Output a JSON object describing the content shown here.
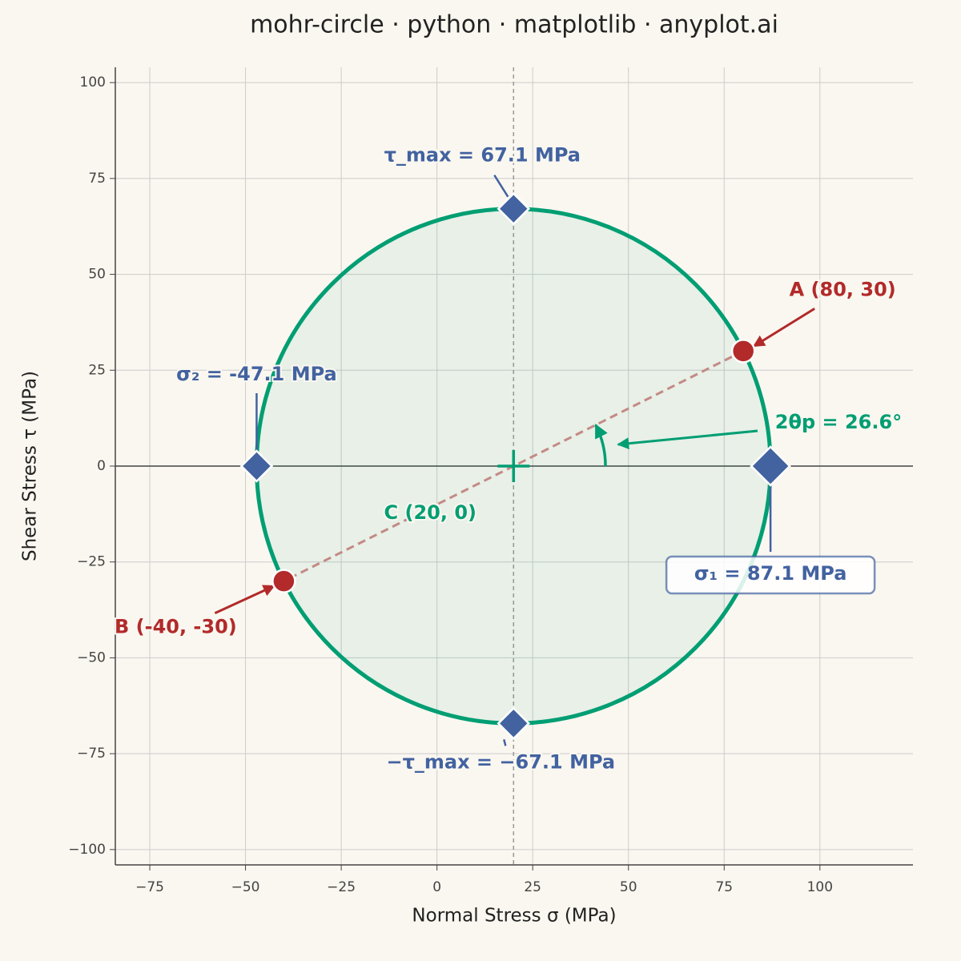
{
  "chart_data": {
    "type": "mohr",
    "title": "mohr-circle · python · matplotlib · anyplot.ai",
    "x_label": "Normal Stress σ (MPa)",
    "y_label": "Shear Stress τ (MPa)",
    "xlim": [
      -84,
      124.3
    ],
    "ylim": [
      -104,
      104
    ],
    "xticks": [
      {
        "value": -75,
        "label": "−75"
      },
      {
        "value": -50,
        "label": "−50"
      },
      {
        "value": -25,
        "label": "−25"
      },
      0,
      25,
      50,
      75,
      100
    ],
    "yticks": [
      {
        "value": -100,
        "label": "−100"
      },
      {
        "value": -75,
        "label": "−75"
      },
      {
        "value": -50,
        "label": "−50"
      },
      {
        "value": -25,
        "label": "−25"
      },
      0,
      25,
      50,
      75,
      100
    ],
    "grid": true,
    "circle_color": "#009e73",
    "center": {
      "x": 20,
      "y": 0,
      "label": "C (20, 0)"
    },
    "radius": 67.1,
    "points": [
      {
        "label": "A (80, 30)",
        "x": 80,
        "y": 30,
        "color": "#b22a2a"
      },
      {
        "label": "B (-40, -30)",
        "x": -40,
        "y": -30,
        "color": "#b22a2a"
      }
    ],
    "principal": [
      {
        "label": "σ₁ = 87.1 MPa",
        "x": 87.1,
        "y": 0,
        "color": "#4262a0"
      },
      {
        "label": "σ₂ = -47.1 MPa",
        "x": -47.1,
        "y": 0,
        "color": "#4262a0"
      },
      {
        "label": "τ_max = 67.1 MPa",
        "x": 20,
        "y": 67.1,
        "color": "#4262a0"
      },
      {
        "label": "−τ_max = −67.1 MPa",
        "x": 20,
        "y": -67.1,
        "color": "#4262a0"
      }
    ],
    "angle": {
      "label": "2θp = 26.6°",
      "value": 26.6
    }
  }
}
